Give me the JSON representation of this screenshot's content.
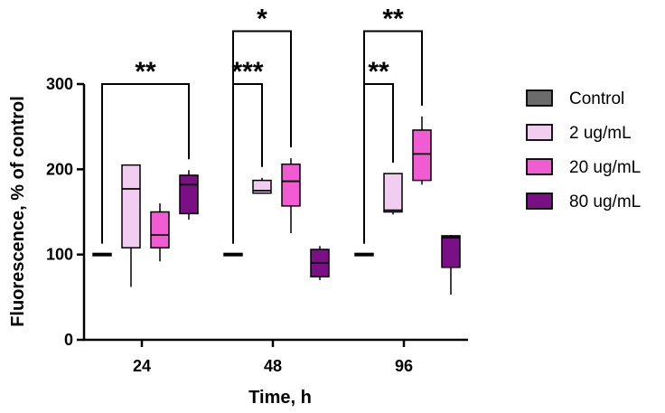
{
  "chart_data": {
    "type": "box",
    "title": "",
    "xlabel": "Time, h",
    "ylabel": "Fluorescence, % of control",
    "ylim": [
      0,
      300
    ],
    "yticks": [
      "0",
      "100",
      "200",
      "300"
    ],
    "categories": [
      "24",
      "48",
      "96"
    ],
    "legend_position": "right",
    "series": [
      {
        "name": "Control",
        "color": "#6b6b6b",
        "boxes": [
          {
            "min": 100,
            "q1": 100,
            "median": 100,
            "q3": 100,
            "max": 100
          },
          {
            "min": 100,
            "q1": 100,
            "median": 100,
            "q3": 100,
            "max": 100
          },
          {
            "min": 100,
            "q1": 100,
            "median": 100,
            "q3": 100,
            "max": 100
          }
        ]
      },
      {
        "name": "2 ug/mL",
        "color": "#f2cdf2",
        "boxes": [
          {
            "min": 62,
            "q1": 108,
            "median": 177,
            "q3": 205,
            "max": 205
          },
          {
            "min": 172,
            "q1": 172,
            "median": 175,
            "q3": 187,
            "max": 190
          },
          {
            "min": 147,
            "q1": 150,
            "median": 152,
            "q3": 195,
            "max": 195
          }
        ]
      },
      {
        "name": "20 ug/mL",
        "color": "#f25cd2",
        "boxes": [
          {
            "min": 92,
            "q1": 108,
            "median": 123,
            "q3": 150,
            "max": 160
          },
          {
            "min": 125,
            "q1": 157,
            "median": 186,
            "q3": 206,
            "max": 213
          },
          {
            "min": 182,
            "q1": 187,
            "median": 218,
            "q3": 246,
            "max": 262
          }
        ]
      },
      {
        "name": "80 ug/mL",
        "color": "#7a0f86",
        "boxes": [
          {
            "min": 141,
            "q1": 148,
            "median": 182,
            "q3": 193,
            "max": 199
          },
          {
            "min": 70,
            "q1": 74,
            "median": 90,
            "q3": 106,
            "max": 110
          },
          {
            "min": 53,
            "q1": 85,
            "median": 120,
            "q3": 122,
            "max": 123
          }
        ]
      }
    ],
    "annotations": [
      {
        "category": 0,
        "from_series": 0,
        "to_series": 3,
        "label": "**",
        "y": 300
      },
      {
        "category": 1,
        "from_series": 0,
        "to_series": 1,
        "label": "***",
        "y": 300
      },
      {
        "category": 1,
        "from_series": 0,
        "to_series": 2,
        "label": "*",
        "y": 362
      },
      {
        "category": 2,
        "from_series": 0,
        "to_series": 1,
        "label": "**",
        "y": 300
      },
      {
        "category": 2,
        "from_series": 0,
        "to_series": 2,
        "label": "**",
        "y": 362
      }
    ]
  }
}
